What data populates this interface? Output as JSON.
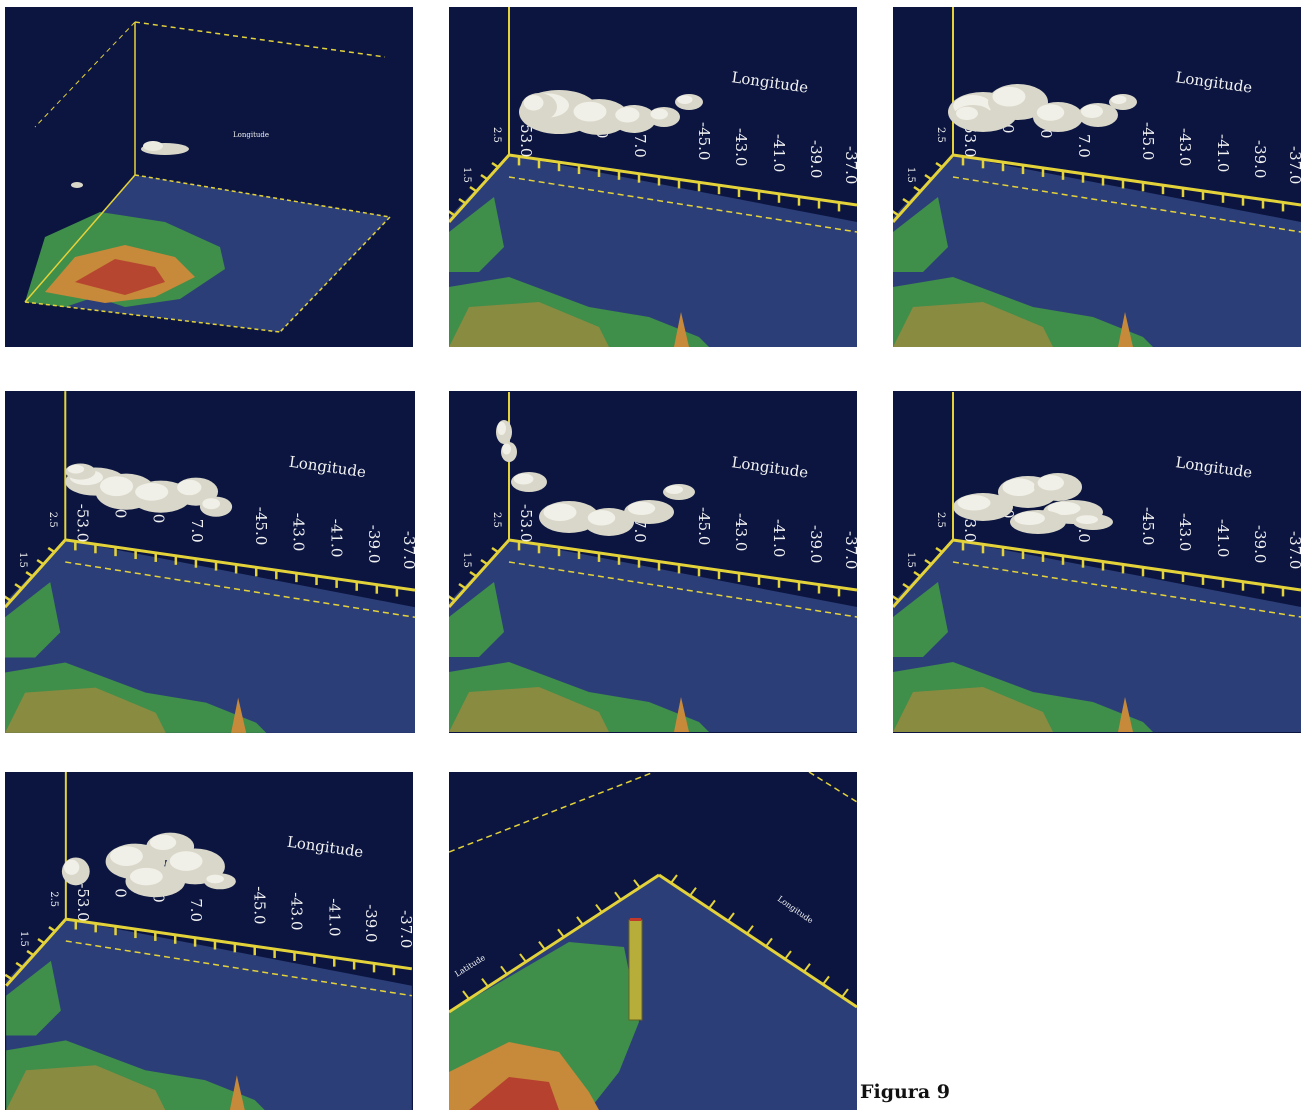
{
  "caption": "Figura 9",
  "axis": {
    "longitude_label": "Longitude",
    "latitude_label": "Latitude",
    "lon_ticks": [
      "-45.0",
      "-43.0",
      "-41.0",
      "-39.0",
      "-37.0"
    ],
    "lon_ticks_partial": [
      "-53.0",
      "0",
      "0",
      "7.0"
    ],
    "lat_ticks": [
      "2.5",
      "1.5"
    ]
  },
  "colors": {
    "sky": "#0b1540",
    "ocean": "#2c3e78",
    "land_green": "#3f8e4a",
    "land_orange": "#c7893a",
    "land_red": "#b2302d",
    "axis_yellow": "#e3d23a",
    "cloud": "#d9d7c9"
  },
  "panels": [
    {
      "name": "overview-panel",
      "view": "wide"
    },
    {
      "name": "cloud-frame-1",
      "view": "close"
    },
    {
      "name": "cloud-frame-2",
      "view": "close"
    },
    {
      "name": "cloud-frame-3",
      "view": "close"
    },
    {
      "name": "cloud-frame-4",
      "view": "close"
    },
    {
      "name": "cloud-frame-5",
      "view": "close"
    },
    {
      "name": "cloud-frame-6",
      "view": "close"
    },
    {
      "name": "column-frame",
      "view": "corner"
    }
  ]
}
